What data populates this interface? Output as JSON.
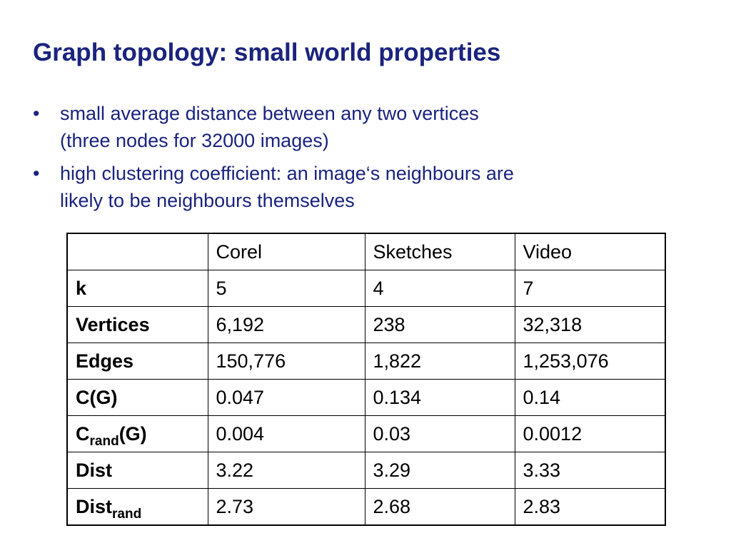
{
  "slide": {
    "title": "Graph topology: small world properties"
  },
  "bullets": [
    {
      "lines": [
        "small average distance between any two vertices",
        "(three nodes for 32000 images)"
      ]
    },
    {
      "lines": [
        "high clustering coefficient: an image‘s neighbours are",
        "likely to be neighbours themselves"
      ]
    }
  ],
  "bullet_symbol": "•",
  "table": {
    "header": [
      "",
      "Corel",
      "Sketches",
      "Video"
    ],
    "rows": [
      {
        "label": "k",
        "label_sub": "",
        "label_suffix": "",
        "cells": [
          "5",
          "4",
          "7"
        ]
      },
      {
        "label": "Vertices",
        "label_sub": "",
        "label_suffix": "",
        "cells": [
          "6,192",
          "238",
          "32,318"
        ]
      },
      {
        "label": "Edges",
        "label_sub": "",
        "label_suffix": "",
        "cells": [
          "150,776",
          "1,822",
          "1,253,076"
        ]
      },
      {
        "label": "C(G)",
        "label_sub": "",
        "label_suffix": "",
        "cells": [
          "0.047",
          "0.134",
          "0.14"
        ]
      },
      {
        "label": "C",
        "label_sub": "rand",
        "label_suffix": "(G)",
        "cells": [
          "0.004",
          "0.03",
          "0.0012"
        ]
      },
      {
        "label": "Dist",
        "label_sub": "",
        "label_suffix": "",
        "cells": [
          "3.22",
          "3.29",
          "3.33"
        ]
      },
      {
        "label": "Dist",
        "label_sub": "rand",
        "label_suffix": "",
        "cells": [
          "2.73",
          "2.68",
          "2.83"
        ]
      }
    ]
  },
  "colors": {
    "text_blue": "#1a237e",
    "table_text": "#000000",
    "background": "#ffffff"
  }
}
